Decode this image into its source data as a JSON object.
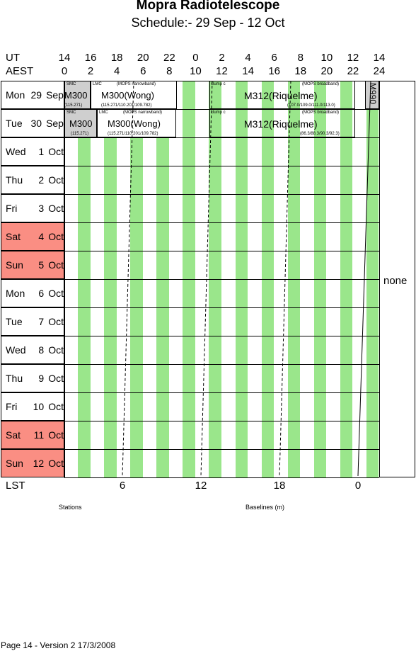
{
  "title": "Mopra Radiotelescope",
  "subtitle": "Schedule:- 29 Sep - 12 Oct",
  "axes": {
    "ut_label": "UT",
    "aest_label": "AEST",
    "lst_label": "LST",
    "ut_ticks": [
      "14",
      "16",
      "18",
      "20",
      "22",
      "0",
      "2",
      "4",
      "6",
      "8",
      "10",
      "12",
      "14"
    ],
    "aest_ticks": [
      "0",
      "2",
      "4",
      "6",
      "8",
      "10",
      "12",
      "14",
      "16",
      "18",
      "20",
      "22",
      "24"
    ],
    "lst_ticks": [
      "6",
      "12",
      "18",
      "0"
    ]
  },
  "days": [
    {
      "name": "Mon",
      "num": "29",
      "month": "Sep",
      "weekend": false
    },
    {
      "name": "Tue",
      "num": "30",
      "month": "Sep",
      "weekend": false
    },
    {
      "name": "Wed",
      "num": "1",
      "month": "Oct",
      "weekend": false
    },
    {
      "name": "Thu",
      "num": "2",
      "month": "Oct",
      "weekend": false
    },
    {
      "name": "Fri",
      "num": "3",
      "month": "Oct",
      "weekend": false
    },
    {
      "name": "Sat",
      "num": "4",
      "month": "Oct",
      "weekend": true
    },
    {
      "name": "Sun",
      "num": "5",
      "month": "Oct",
      "weekend": true
    },
    {
      "name": "Mon",
      "num": "6",
      "month": "Oct",
      "weekend": false
    },
    {
      "name": "Tue",
      "num": "7",
      "month": "Oct",
      "weekend": false
    },
    {
      "name": "Wed",
      "num": "8",
      "month": "Oct",
      "weekend": false
    },
    {
      "name": "Thu",
      "num": "9",
      "month": "Oct",
      "weekend": false
    },
    {
      "name": "Fri",
      "num": "10",
      "month": "Oct",
      "weekend": false
    },
    {
      "name": "Sat",
      "num": "11",
      "month": "Oct",
      "weekend": true
    },
    {
      "name": "Sun",
      "num": "12",
      "month": "Oct",
      "weekend": true
    }
  ],
  "row1": {
    "smc": "SMC",
    "m300": "M300",
    "m300_freq": "(115.271)",
    "lmc": "LMC",
    "mops_narrow": "(MOPS narrowband)",
    "m300wong": "M300(Wong)",
    "wong_freq": "(115.271/110.201/109.782)",
    "clump": "clump c",
    "mops_broad": "(MOPS broadband)",
    "m312": "M312(Riquelme)",
    "riq_freq": "(107.0/109.0/111.0/113.0)",
    "m990": "M990"
  },
  "row2": {
    "smc": "SMC",
    "m300": "M300",
    "m300_freq": "(115.271)",
    "lmc": "LMC",
    "mops_narrow": "(MOPS narrowband)",
    "m300wong": "M300(Wong)",
    "wong_freq": "(115.271/110.201/109.782)",
    "clump": "clump c",
    "mops_broad": "(MOPS broadband)",
    "m312": "M312(Riquelme)",
    "riq_freq": "(86.3/88.3/90.3/92.3)"
  },
  "config": "none",
  "stations_label": "Stations",
  "baselines_label": "Baselines (m)",
  "footer": "Page 14 - Version 2  17/3/2008",
  "colors": {
    "stripe": "#9ae68b",
    "weekend": "#fa8e83",
    "block": "#cfcfcf"
  }
}
